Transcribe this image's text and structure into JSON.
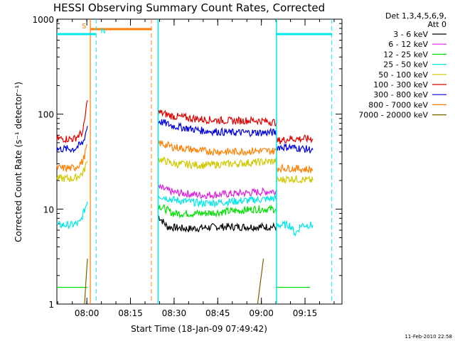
{
  "chart_data": {
    "type": "line",
    "title": "HESSI Observing Summary Count Rates, Corrected",
    "xlabel": "Start Time (18-Jan-09 07:49:42)",
    "ylabel": "Corrected Count Rate (s⁻¹ detector⁻¹)",
    "x_unit": "minutes after 07:49:42",
    "xlim": [
      0,
      98
    ],
    "ylim": [
      1,
      1000
    ],
    "y_scale": "log",
    "x_ticks": [
      {
        "value": 10.3,
        "label": "08:00"
      },
      {
        "value": 25.3,
        "label": "08:15"
      },
      {
        "value": 40.3,
        "label": "08:30"
      },
      {
        "value": 55.3,
        "label": "08:45"
      },
      {
        "value": 70.3,
        "label": "09:00"
      },
      {
        "value": 85.3,
        "label": "09:15"
      }
    ],
    "y_ticks": [
      {
        "value": 1,
        "label": "1"
      },
      {
        "value": 10,
        "label": "10"
      },
      {
        "value": 100,
        "label": "100"
      },
      {
        "value": 1000,
        "label": "1000"
      }
    ],
    "legend": {
      "placement": "top-right",
      "header": [
        "Det 1,3,4,5,6,9,",
        "Att 0"
      ]
    },
    "series": [
      {
        "name": "3 - 6 keV",
        "color": "#000000",
        "segments": [
          [
            [
              34.8,
              8.5
            ],
            [
              38,
              6.5
            ],
            [
              45,
              6.2
            ],
            [
              55,
              6.5
            ],
            [
              63,
              6.5
            ],
            [
              71,
              6.5
            ],
            [
              75.5,
              6.5
            ]
          ]
        ]
      },
      {
        "name": "6 - 12 keV",
        "color": "#e020e0",
        "segments": [
          [
            [
              34.8,
              17
            ],
            [
              40,
              15
            ],
            [
              50,
              14
            ],
            [
              60,
              14.5
            ],
            [
              68,
              15
            ],
            [
              75.5,
              15.5
            ]
          ]
        ]
      },
      {
        "name": "12 - 25 keV",
        "color": "#00e000",
        "segments": [
          [
            [
              0,
              1.5
            ],
            [
              10.5,
              1.5
            ]
          ],
          [
            [
              34.8,
              11
            ],
            [
              40,
              9
            ],
            [
              50,
              9
            ],
            [
              60,
              9.5
            ],
            [
              68,
              10
            ],
            [
              75.5,
              10
            ]
          ],
          [
            [
              75.5,
              1.5
            ],
            [
              87,
              1.5
            ]
          ]
        ]
      },
      {
        "name": "25 - 50 keV",
        "color": "#00e8e8",
        "segments": [
          [
            [
              0,
              6.8
            ],
            [
              5,
              6.8
            ],
            [
              8,
              7.2
            ],
            [
              10.5,
              12
            ]
          ],
          [
            [
              34.8,
              14
            ],
            [
              40,
              12.5
            ],
            [
              50,
              11.5
            ],
            [
              60,
              12
            ],
            [
              68,
              12.5
            ],
            [
              75.5,
              13
            ]
          ],
          [
            [
              75.5,
              6.8
            ],
            [
              80,
              6.8
            ],
            [
              82,
              5.5
            ],
            [
              84,
              6.8
            ],
            [
              88,
              6.8
            ]
          ]
        ]
      },
      {
        "name": "50 - 100 keV",
        "color": "#d0c800",
        "segments": [
          [
            [
              0,
              21
            ],
            [
              6,
              21
            ],
            [
              9,
              24
            ],
            [
              10.5,
              32
            ]
          ],
          [
            [
              34.8,
              34
            ],
            [
              40,
              30
            ],
            [
              50,
              29
            ],
            [
              60,
              30
            ],
            [
              68,
              31
            ],
            [
              75.5,
              32
            ]
          ],
          [
            [
              75.5,
              20
            ],
            [
              80,
              21
            ],
            [
              88,
              20
            ]
          ]
        ]
      },
      {
        "name": "100 - 300 keV",
        "color": "#e00000",
        "segments": [
          [
            [
              0,
              55
            ],
            [
              6,
              55
            ],
            [
              9,
              65
            ],
            [
              10.5,
              140
            ]
          ],
          [
            [
              34.8,
              105
            ],
            [
              40,
              95
            ],
            [
              50,
              88
            ],
            [
              60,
              85
            ],
            [
              68,
              86
            ],
            [
              75.5,
              82
            ]
          ],
          [
            [
              75.5,
              52
            ],
            [
              80,
              55
            ],
            [
              88,
              55
            ]
          ]
        ]
      },
      {
        "name": "300 - 800 keV",
        "color": "#0000e0",
        "segments": [
          [
            [
              0,
              43
            ],
            [
              6,
              43
            ],
            [
              9,
              50
            ],
            [
              10.5,
              75
            ]
          ],
          [
            [
              34.8,
              85
            ],
            [
              40,
              75
            ],
            [
              50,
              67
            ],
            [
              60,
              64
            ],
            [
              68,
              64
            ],
            [
              75.5,
              64
            ]
          ],
          [
            [
              75.5,
              45
            ],
            [
              80,
              45
            ],
            [
              88,
              42
            ]
          ]
        ]
      },
      {
        "name": "800 - 7000 keV",
        "color": "#ff8000",
        "segments": [
          [
            [
              0,
              27
            ],
            [
              6,
              27
            ],
            [
              9,
              32
            ],
            [
              10.5,
              48
            ]
          ],
          [
            [
              34.8,
              50
            ],
            [
              40,
              45
            ],
            [
              50,
              41
            ],
            [
              60,
              40
            ],
            [
              68,
              41
            ],
            [
              75.5,
              41
            ]
          ],
          [
            [
              75.5,
              27
            ],
            [
              80,
              27
            ],
            [
              88,
              26
            ]
          ]
        ]
      },
      {
        "name": "7000 - 20000 keV",
        "color": "#806000",
        "segments": [
          [
            [
              9.5,
              1
            ],
            [
              10.5,
              3
            ]
          ],
          [
            [
              69,
              1
            ],
            [
              71,
              3
            ]
          ]
        ]
      }
    ],
    "annotations": [
      {
        "text": "S",
        "color": "#ff8000"
      },
      {
        "text": "N",
        "color": "#00e8e8"
      }
    ],
    "timestamp": "11-Feb-2010 22:58"
  }
}
